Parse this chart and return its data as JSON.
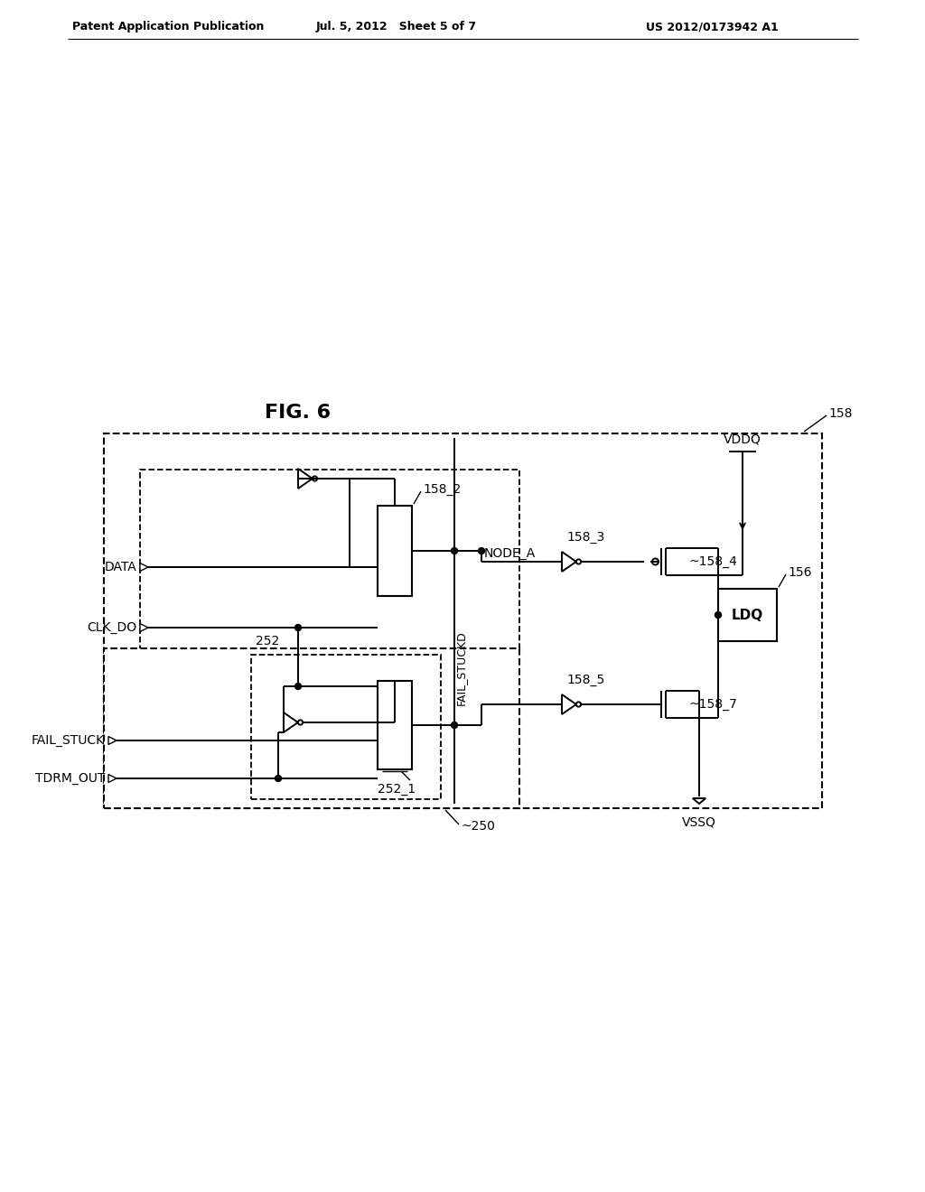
{
  "title": "FIG. 6",
  "header_left": "Patent Application Publication",
  "header_mid": "Jul. 5, 2012   Sheet 5 of 7",
  "header_right": "US 2012/0173942 A1",
  "bg_color": "#ffffff",
  "label_158": "158",
  "label_158_2": "158_2",
  "label_158_3": "158_3",
  "label_158_4": "~158_4",
  "label_158_5": "158_5",
  "label_158_7": "~158_7",
  "label_156": "156",
  "label_252": "252",
  "label_252_1": "252_1",
  "label_250": "~250",
  "label_DATA": "DATA",
  "label_CLK_DO": "CLK_DO",
  "label_FAIL_STUCK": "FAIL_STUCK",
  "label_TDRM_OUT": "TDRM_OUT",
  "label_FAIL_STUCKD": "FAIL_STUCKD",
  "label_NODE_A": "NODE_A",
  "label_VDDQ": "VDDQ",
  "label_VSSQ": "VSSQ",
  "label_LDQ": "LDQ"
}
